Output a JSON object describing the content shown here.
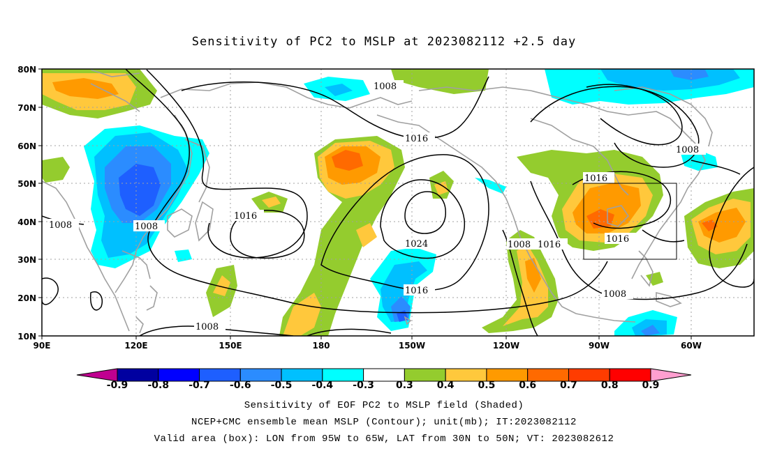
{
  "title": "Sensitivity of PC2 to MSLP at 2023082112 +2.5 day",
  "map": {
    "lon_labels": [
      "90E",
      "120E",
      "150E",
      "180",
      "150W",
      "120W",
      "90W",
      "60W"
    ],
    "lat_labels": [
      "80N",
      "70N",
      "60N",
      "50N",
      "40N",
      "30N",
      "20N",
      "10N"
    ],
    "contour_labels": [
      "1008",
      "1016",
      "1008",
      "1008",
      "1016",
      "1024",
      "1016",
      "1008",
      "1008",
      "1016",
      "1016",
      "1016",
      "1008",
      "1008"
    ],
    "box": {
      "lon_from": "95W",
      "lon_to": "65W",
      "lat_from": "30N",
      "lat_to": "50N"
    }
  },
  "colorbar": {
    "labels": [
      "-0.9",
      "-0.8",
      "-0.7",
      "-0.6",
      "-0.5",
      "-0.4",
      "-0.3",
      "0.3",
      "0.4",
      "0.5",
      "0.6",
      "0.7",
      "0.8",
      "0.9"
    ],
    "colors": [
      "#0000a0",
      "#0000ff",
      "#1e5fff",
      "#2b8cff",
      "#00c0ff",
      "#00ffff",
      "#ffffff",
      "#94cc2e",
      "#ffc83c",
      "#ff9a00",
      "#ff6a00",
      "#ff3c00",
      "#ff0000"
    ],
    "left_tip": "#c00090",
    "right_tip": "#ff9fd0"
  },
  "caption": {
    "line1": "Sensitivity of EOF PC2 to MSLP field (Shaded)",
    "line2": "NCEP+CMC ensemble mean MSLP (Contour); unit(mb); IT:2023082112",
    "line3": "Valid area (box): LON from 95W to 65W, LAT from 30N to 50N; VT: 2023082612"
  },
  "colors": {
    "blue_dark": "#1e5fff",
    "blue_mid": "#2b8cff",
    "blue_light": "#00c0ff",
    "cyan": "#00ffff",
    "green": "#94cc2e",
    "yellow": "#ffc83c",
    "orange": "#ff9a00",
    "orange_red": "#ff6a00",
    "coast": "#a0a0a0",
    "grid": "#a0a0a0"
  }
}
